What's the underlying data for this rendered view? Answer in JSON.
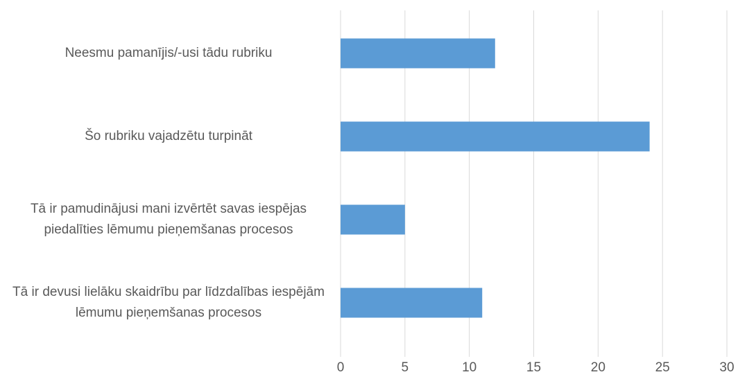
{
  "chart_data": {
    "type": "bar",
    "orientation": "horizontal",
    "categories": [
      "Neesmu pamanījis/-usi tādu rubriku",
      "Šo rubriku vajadzētu turpināt",
      "Tā ir pamudinājusi mani izvērtēt savas iespējas piedalīties lēmumu pieņemšanas procesos",
      "Tā ir devusi lielāku skaidrību par līdzdalības iespējām lēmumu pieņemšanas procesos"
    ],
    "values": [
      12,
      24,
      5,
      11
    ],
    "color": "#5b9bd5",
    "xlim": [
      0,
      30
    ],
    "xticks": [
      0,
      5,
      10,
      15,
      20,
      25,
      30
    ],
    "grid": true
  }
}
